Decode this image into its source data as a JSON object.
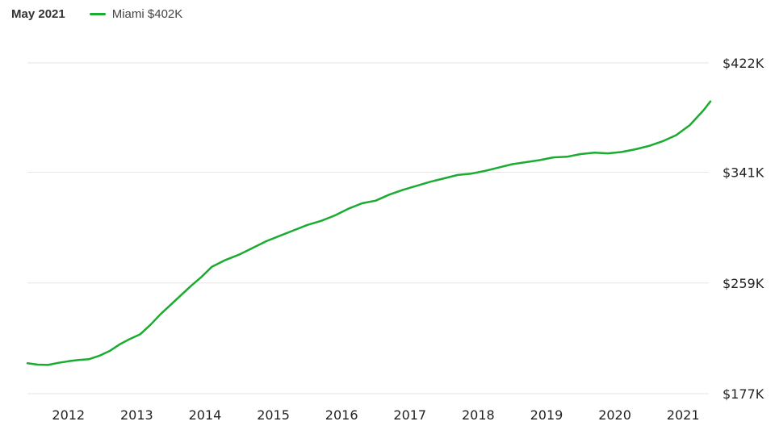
{
  "header": {
    "date_label": "May 2021",
    "series_label": "Miami $402K"
  },
  "colors": {
    "line": "#1aac31",
    "grid": "#e6e6e6"
  },
  "chart_data": {
    "type": "line",
    "title": "",
    "xlabel": "",
    "ylabel": "",
    "legend": "top-left",
    "grid": true,
    "xlim": [
      2011.4,
      2021.4
    ],
    "ylim": [
      177,
      422
    ],
    "x_ticks": [
      {
        "value": 2012,
        "label": "2012"
      },
      {
        "value": 2013,
        "label": "2013"
      },
      {
        "value": 2014,
        "label": "2014"
      },
      {
        "value": 2015,
        "label": "2015"
      },
      {
        "value": 2016,
        "label": "2016"
      },
      {
        "value": 2017,
        "label": "2017"
      },
      {
        "value": 2018,
        "label": "2018"
      },
      {
        "value": 2019,
        "label": "2019"
      },
      {
        "value": 2020,
        "label": "2020"
      },
      {
        "value": 2021,
        "label": "2021"
      }
    ],
    "y_ticks": [
      {
        "value": 422,
        "label": "$422K"
      },
      {
        "value": 341,
        "label": "$341K"
      },
      {
        "value": 259,
        "label": "$259K"
      },
      {
        "value": 177,
        "label": "$177K"
      }
    ],
    "series": [
      {
        "name": "Miami",
        "x": [
          2011.4,
          2011.55,
          2011.7,
          2011.85,
          2012.0,
          2012.15,
          2012.3,
          2012.45,
          2012.6,
          2012.75,
          2012.9,
          2013.05,
          2013.2,
          2013.35,
          2013.5,
          2013.65,
          2013.8,
          2013.95,
          2014.1,
          2014.3,
          2014.5,
          2014.7,
          2014.9,
          2015.1,
          2015.3,
          2015.5,
          2015.7,
          2015.9,
          2016.1,
          2016.3,
          2016.5,
          2016.7,
          2016.9,
          2017.1,
          2017.3,
          2017.5,
          2017.7,
          2017.9,
          2018.1,
          2018.3,
          2018.5,
          2018.7,
          2018.9,
          2019.1,
          2019.3,
          2019.5,
          2019.7,
          2019.9,
          2020.1,
          2020.3,
          2020.5,
          2020.7,
          2020.9,
          2021.1,
          2021.3,
          2021.4
        ],
        "values": [
          199.5,
          198.5,
          198.3,
          199.8,
          201.0,
          202.0,
          202.5,
          205.0,
          208.5,
          213.5,
          217.5,
          221.0,
          228.0,
          236.0,
          243.0,
          250.0,
          257.0,
          263.5,
          271.0,
          276.0,
          280.0,
          285.0,
          290.0,
          294.0,
          298.0,
          302.0,
          305.0,
          309.0,
          314.0,
          318.0,
          320.0,
          324.5,
          328.0,
          331.0,
          334.0,
          336.5,
          339.0,
          340.0,
          342.0,
          344.5,
          347.0,
          348.5,
          350.0,
          352.0,
          352.5,
          354.5,
          355.5,
          355.0,
          356.0,
          358.0,
          360.5,
          364.0,
          368.5,
          376.0,
          387.0,
          393.5
        ]
      }
    ]
  }
}
